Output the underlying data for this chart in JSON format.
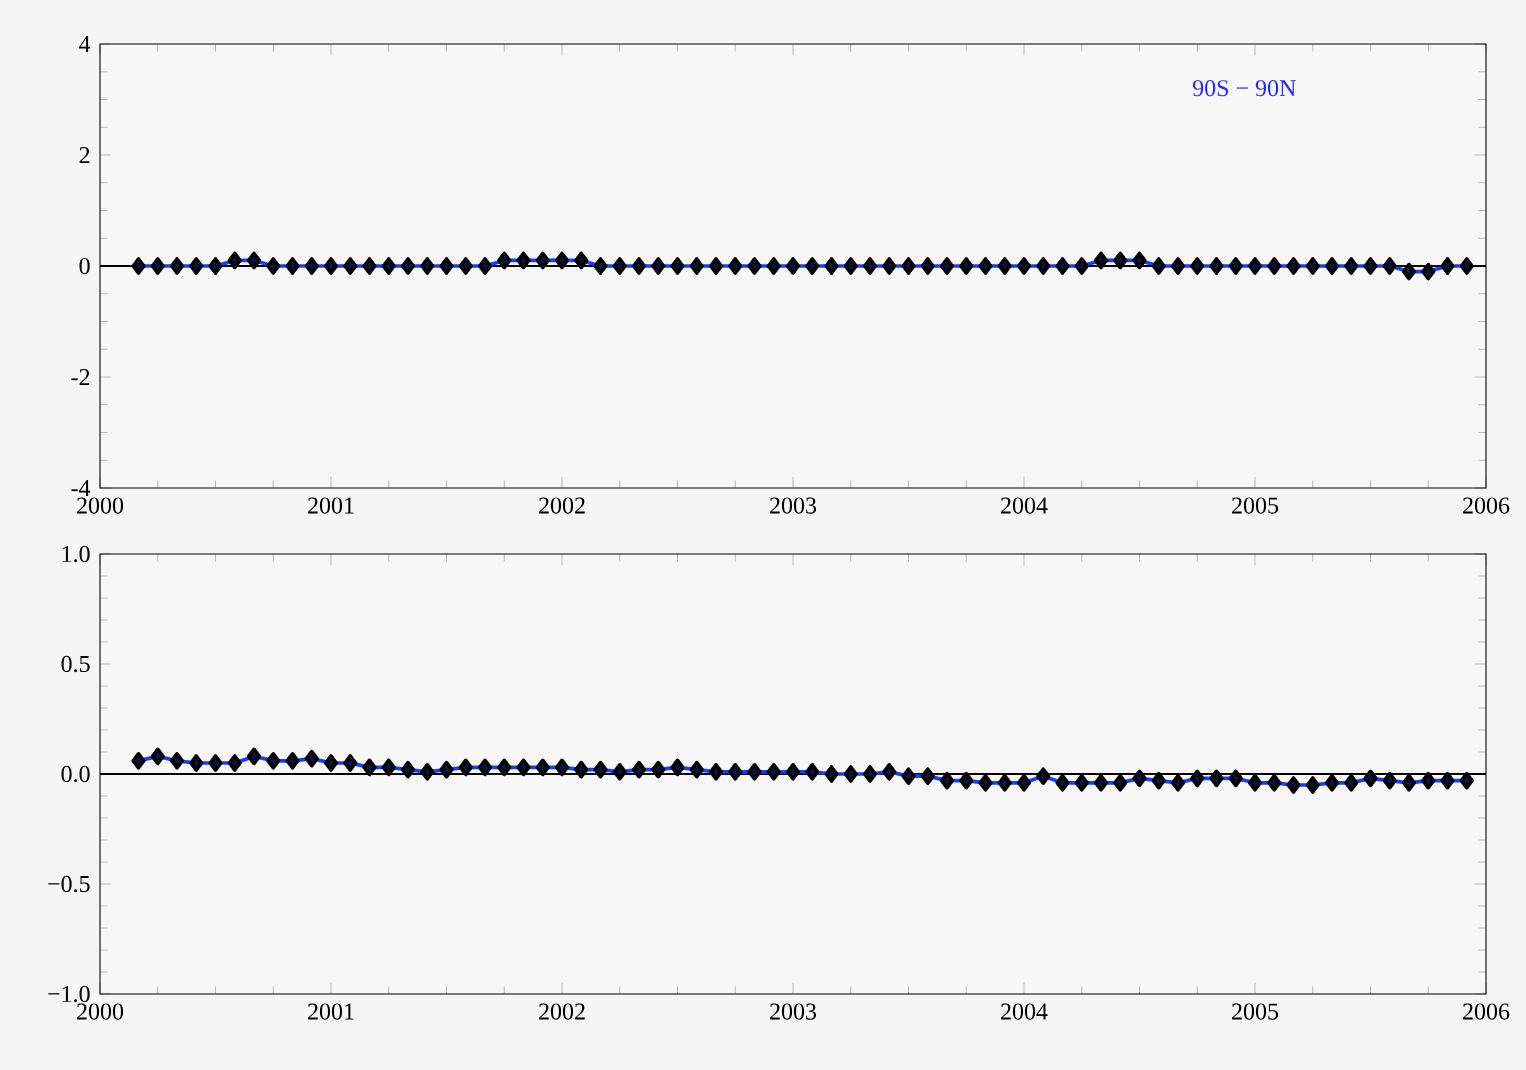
{
  "chart_data": [
    {
      "type": "line",
      "x": [
        "2000-03",
        "2000-04",
        "2000-05",
        "2000-06",
        "2000-07",
        "2000-08",
        "2000-09",
        "2000-10",
        "2000-11",
        "2000-12",
        "2001-01",
        "2001-02",
        "2001-03",
        "2001-04",
        "2001-05",
        "2001-06",
        "2001-07",
        "2001-08",
        "2001-09",
        "2001-10",
        "2001-11",
        "2001-12",
        "2002-01",
        "2002-02",
        "2002-03",
        "2002-04",
        "2002-05",
        "2002-06",
        "2002-07",
        "2002-08",
        "2002-09",
        "2002-10",
        "2002-11",
        "2002-12",
        "2003-01",
        "2003-02",
        "2003-03",
        "2003-04",
        "2003-05",
        "2003-06",
        "2003-07",
        "2003-08",
        "2003-09",
        "2003-10",
        "2003-11",
        "2003-12",
        "2004-01",
        "2004-02",
        "2004-03",
        "2004-04",
        "2004-05",
        "2004-06",
        "2004-07",
        "2004-08",
        "2004-09",
        "2004-10",
        "2004-11",
        "2004-12",
        "2005-01",
        "2005-02",
        "2005-03",
        "2005-04",
        "2005-05",
        "2005-06",
        "2005-07",
        "2005-08",
        "2005-09",
        "2005-10",
        "2005-11",
        "2005-12"
      ],
      "values": [
        0.0,
        0.0,
        0.0,
        0.0,
        0.0,
        0.1,
        0.1,
        0.0,
        0.0,
        0.0,
        0.0,
        0.0,
        0.0,
        0.0,
        0.0,
        0.0,
        0.0,
        0.0,
        0.0,
        0.1,
        0.1,
        0.1,
        0.1,
        0.1,
        0.0,
        0.0,
        0.0,
        0.0,
        0.0,
        0.0,
        0.0,
        0.0,
        0.0,
        0.0,
        0.0,
        0.0,
        0.0,
        0.0,
        0.0,
        0.0,
        0.0,
        0.0,
        0.0,
        0.0,
        0.0,
        0.0,
        0.0,
        0.0,
        0.0,
        0.0,
        0.1,
        0.1,
        0.1,
        0.0,
        0.0,
        0.0,
        0.0,
        0.0,
        0.0,
        0.0,
        0.0,
        0.0,
        0.0,
        0.0,
        0.0,
        0.0,
        -0.1,
        -0.1,
        0.0,
        0.0
      ],
      "color": "#1a3cff",
      "marker": "diamond",
      "xlim": [
        "2000",
        "2006"
      ],
      "xticks": [
        "2000",
        "2001",
        "2002",
        "2003",
        "2004",
        "2005",
        "2006"
      ],
      "ylim": [
        -4,
        4
      ],
      "yticks": [
        -4,
        -2,
        0,
        2,
        4
      ],
      "ref_lines": [
        {
          "axis": "y",
          "value": 0
        }
      ],
      "annotations": [
        "90S − 90N"
      ]
    },
    {
      "type": "line",
      "x": [
        "2000-03",
        "2000-04",
        "2000-05",
        "2000-06",
        "2000-07",
        "2000-08",
        "2000-09",
        "2000-10",
        "2000-11",
        "2000-12",
        "2001-01",
        "2001-02",
        "2001-03",
        "2001-04",
        "2001-05",
        "2001-06",
        "2001-07",
        "2001-08",
        "2001-09",
        "2001-10",
        "2001-11",
        "2001-12",
        "2002-01",
        "2002-02",
        "2002-03",
        "2002-04",
        "2002-05",
        "2002-06",
        "2002-07",
        "2002-08",
        "2002-09",
        "2002-10",
        "2002-11",
        "2002-12",
        "2003-01",
        "2003-02",
        "2003-03",
        "2003-04",
        "2003-05",
        "2003-06",
        "2003-07",
        "2003-08",
        "2003-09",
        "2003-10",
        "2003-11",
        "2003-12",
        "2004-01",
        "2004-02",
        "2004-03",
        "2004-04",
        "2004-05",
        "2004-06",
        "2004-07",
        "2004-08",
        "2004-09",
        "2004-10",
        "2004-11",
        "2004-12",
        "2005-01",
        "2005-02",
        "2005-03",
        "2005-04",
        "2005-05",
        "2005-06",
        "2005-07",
        "2005-08",
        "2005-09",
        "2005-10",
        "2005-11",
        "2005-12"
      ],
      "values": [
        0.06,
        0.08,
        0.06,
        0.05,
        0.05,
        0.05,
        0.08,
        0.06,
        0.06,
        0.07,
        0.05,
        0.05,
        0.03,
        0.03,
        0.02,
        0.01,
        0.02,
        0.03,
        0.03,
        0.03,
        0.03,
        0.03,
        0.03,
        0.02,
        0.02,
        0.01,
        0.02,
        0.02,
        0.03,
        0.02,
        0.01,
        0.01,
        0.01,
        0.01,
        0.01,
        0.01,
        0.0,
        0.0,
        0.0,
        0.01,
        -0.01,
        -0.01,
        -0.03,
        -0.03,
        -0.04,
        -0.04,
        -0.04,
        -0.01,
        -0.04,
        -0.04,
        -0.04,
        -0.04,
        -0.02,
        -0.03,
        -0.04,
        -0.02,
        -0.02,
        -0.02,
        -0.04,
        -0.04,
        -0.05,
        -0.05,
        -0.04,
        -0.04,
        -0.02,
        -0.03,
        -0.04,
        -0.03,
        -0.03,
        -0.03
      ],
      "color": "#1a3cff",
      "marker": "diamond",
      "xlim": [
        "2000",
        "2006"
      ],
      "xticks": [
        "2000",
        "2001",
        "2002",
        "2003",
        "2004",
        "2005",
        "2006"
      ],
      "ylim": [
        -1.0,
        1.0
      ],
      "yticks": [
        {
          "value": -1.0,
          "label": "−1.0"
        },
        {
          "value": -0.5,
          "label": "−0.5"
        },
        {
          "value": 0.0,
          "label": "0.0"
        },
        {
          "value": 0.5,
          "label": "0.5"
        },
        {
          "value": 1.0,
          "label": "1.0"
        }
      ],
      "ref_lines": [
        {
          "axis": "y",
          "value": 0
        }
      ]
    }
  ]
}
